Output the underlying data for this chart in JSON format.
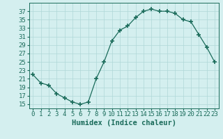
{
  "x": [
    0,
    1,
    2,
    3,
    4,
    5,
    6,
    7,
    8,
    9,
    10,
    11,
    12,
    13,
    14,
    15,
    16,
    17,
    18,
    19,
    20,
    21,
    22,
    23
  ],
  "y": [
    22,
    20,
    19.5,
    17.5,
    16.5,
    15.5,
    15.0,
    15.5,
    21.0,
    25.0,
    30.0,
    32.5,
    33.5,
    35.5,
    37.0,
    37.5,
    37.0,
    37.0,
    36.5,
    35.0,
    34.5,
    31.5,
    28.5,
    25.0
  ],
  "xlabel": "Humidex (Indice chaleur)",
  "line_color": "#1a6b5a",
  "marker_color": "#1a6b5a",
  "bg_color": "#d4efef",
  "grid_color": "#afd8d8",
  "tick_color": "#1a6b5a",
  "xlabel_color": "#1a6b5a",
  "ylim": [
    14,
    39
  ],
  "xlim": [
    -0.5,
    23.5
  ],
  "yticks": [
    15,
    17,
    19,
    21,
    23,
    25,
    27,
    29,
    31,
    33,
    35,
    37
  ],
  "xlabel_fontsize": 7.5,
  "tick_fontsize": 6.5
}
